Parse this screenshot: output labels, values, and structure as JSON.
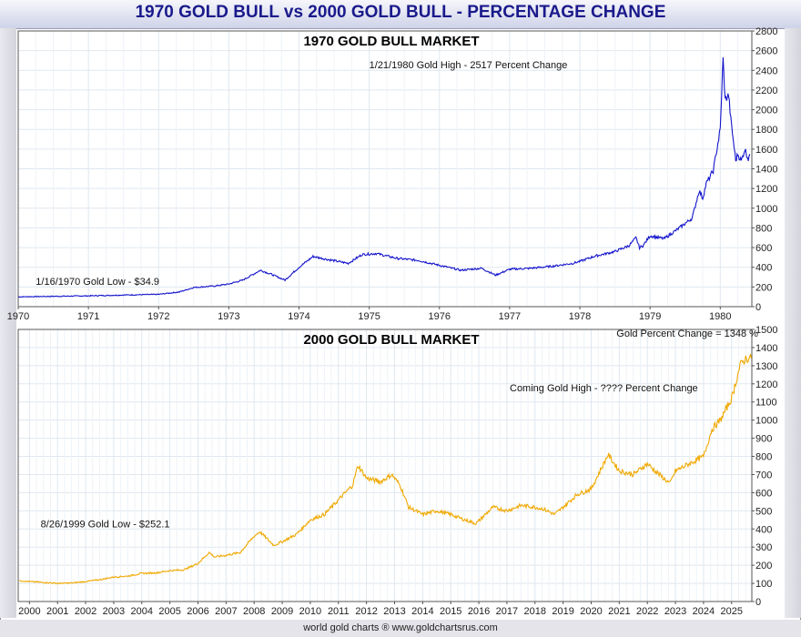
{
  "page": {
    "title": "1970 GOLD BULL vs 2000 GOLD BULL - PERCENTAGE CHANGE",
    "footer": "world gold charts ® www.goldchartsrus.com",
    "colors": {
      "series_1970": "#1414cc",
      "series_2000": "#f0a800",
      "title": "#1a1a8c",
      "grid": "#dfe7ef"
    }
  },
  "chart_data": [
    {
      "type": "line",
      "title": "1970 GOLD BULL MARKET",
      "xlim": [
        1970,
        1980.45
      ],
      "ylim": [
        0,
        2800
      ],
      "x_ticks": [
        "1970",
        "1971",
        "1972",
        "1973",
        "1974",
        "1975",
        "1976",
        "1977",
        "1978",
        "1979",
        "1980"
      ],
      "y_ticks": [
        0,
        200,
        400,
        600,
        800,
        1000,
        1200,
        1400,
        1600,
        1800,
        2000,
        2200,
        2400,
        2600,
        2800
      ],
      "grid": true,
      "annotations": [
        {
          "text": "1/21/1980 Gold High - 2517 Percent Change",
          "x": 1975.0,
          "y": 2420
        },
        {
          "text": "1/16/1970 Gold Low - $34.9",
          "x": 1970.25,
          "y": 220
        }
      ],
      "series": [
        {
          "x": [
            1970.0,
            1970.5,
            1971.0,
            1971.5,
            1972.0,
            1972.3,
            1972.5,
            1972.8,
            1973.0,
            1973.2,
            1973.45,
            1973.6,
            1973.8,
            1974.0,
            1974.2,
            1974.4,
            1974.7,
            1974.9,
            1975.1,
            1975.4,
            1975.7,
            1976.0,
            1976.3,
            1976.6,
            1976.8,
            1977.0,
            1977.3,
            1977.6,
            1977.9,
            1978.0,
            1978.2,
            1978.5,
            1978.7,
            1978.8,
            1978.85,
            1978.9,
            1979.0,
            1979.2,
            1979.4,
            1979.6,
            1979.7,
            1979.75,
            1979.8,
            1979.9,
            1980.0,
            1980.04,
            1980.07,
            1980.12,
            1980.15,
            1980.22,
            1980.25,
            1980.3,
            1980.35,
            1980.4,
            1980.42
          ],
          "y": [
            100,
            105,
            110,
            118,
            125,
            150,
            195,
            210,
            230,
            270,
            370,
            330,
            270,
            400,
            510,
            480,
            440,
            530,
            540,
            490,
            470,
            420,
            370,
            390,
            320,
            380,
            390,
            410,
            440,
            460,
            510,
            560,
            620,
            700,
            600,
            620,
            720,
            690,
            790,
            900,
            1180,
            1100,
            1250,
            1380,
            1800,
            2517,
            2100,
            2150,
            1900,
            1480,
            1550,
            1480,
            1600,
            1500,
            1550
          ]
        }
      ]
    },
    {
      "type": "line",
      "title": "2000 GOLD BULL MARKET",
      "xlim": [
        1999.6,
        2025.72
      ],
      "ylim": [
        0,
        1500
      ],
      "x_ticks": [
        "2000",
        "2001",
        "2002",
        "2003",
        "2004",
        "2005",
        "2006",
        "2007",
        "2008",
        "2009",
        "2010",
        "2011",
        "2012",
        "2013",
        "2014",
        "2015",
        "2016",
        "2017",
        "2018",
        "2019",
        "2020",
        "2021",
        "2022",
        "2023",
        "2024",
        "2025"
      ],
      "y_ticks": [
        0,
        100,
        200,
        300,
        400,
        500,
        600,
        700,
        800,
        900,
        1000,
        1100,
        1200,
        1300,
        1400,
        1500
      ],
      "grid": true,
      "annotations": [
        {
          "text": "Gold Percent Change = 1348 %",
          "x": 2020.9,
          "y": 1460
        },
        {
          "text": "Coming Gold High - ???? Percent Change",
          "x": 2017.1,
          "y": 1160
        },
        {
          "text": "8/26/1999 Gold Low - $252.1",
          "x": 2000.4,
          "y": 410
        }
      ],
      "series": [
        {
          "x": [
            1999.65,
            2000.0,
            2000.5,
            2001.0,
            2001.5,
            2002.0,
            2002.5,
            2003.0,
            2003.5,
            2004.0,
            2004.5,
            2005.0,
            2005.5,
            2006.0,
            2006.4,
            2006.6,
            2007.0,
            2007.5,
            2008.0,
            2008.2,
            2008.7,
            2009.0,
            2009.5,
            2010.0,
            2010.5,
            2011.0,
            2011.5,
            2011.7,
            2012.0,
            2012.5,
            2012.9,
            2013.2,
            2013.5,
            2014.0,
            2014.5,
            2015.0,
            2015.5,
            2015.9,
            2016.5,
            2017.0,
            2017.5,
            2018.0,
            2018.3,
            2018.7,
            2019.0,
            2019.5,
            2020.0,
            2020.6,
            2021.0,
            2021.5,
            2022.0,
            2022.2,
            2022.8,
            2023.0,
            2023.5,
            2024.0,
            2024.3,
            2024.6,
            2025.0,
            2025.3,
            2025.5,
            2025.7
          ],
          "y": [
            115,
            110,
            105,
            100,
            102,
            110,
            120,
            135,
            140,
            155,
            158,
            170,
            175,
            210,
            270,
            245,
            255,
            270,
            360,
            385,
            310,
            330,
            370,
            450,
            480,
            560,
            640,
            750,
            680,
            660,
            700,
            640,
            520,
            480,
            500,
            480,
            450,
            430,
            520,
            500,
            530,
            520,
            510,
            480,
            520,
            590,
            620,
            810,
            720,
            700,
            760,
            730,
            650,
            720,
            760,
            800,
            950,
            1000,
            1120,
            1300,
            1340,
            1340
          ]
        }
      ]
    }
  ]
}
